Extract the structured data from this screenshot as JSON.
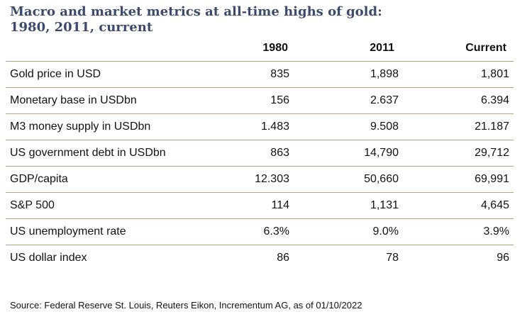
{
  "title_line1": "Macro and market metrics at all-time highs of gold:",
  "title_line2": "1980, 2011, current",
  "header": {
    "label": "",
    "col1980": "1980",
    "col2011": "2011",
    "colCurrent": "Current"
  },
  "rows": [
    {
      "label": "Gold price in USD",
      "v1980": "835",
      "v2011": "1,898",
      "current": "1,801"
    },
    {
      "label": "Monetary base in USDbn",
      "v1980": "156",
      "v2011": "2.637",
      "current": "6.394"
    },
    {
      "label": "M3 money supply in USDbn",
      "v1980": "1.483",
      "v2011": "9.508",
      "current": "21.187"
    },
    {
      "label": "US government debt in USDbn",
      "v1980": "863",
      "v2011": "14,790",
      "current": "29,712"
    },
    {
      "label": "GDP/capita",
      "v1980": "12.303",
      "v2011": "50,660",
      "current": "69,991"
    },
    {
      "label": "S&P 500",
      "v1980": "114",
      "v2011": "1,131",
      "current": "4,645"
    },
    {
      "label": "US unemployment rate",
      "v1980": "6.3%",
      "v2011": "9.0%",
      "current": "3.9%"
    },
    {
      "label": "US dollar index",
      "v1980": "86",
      "v2011": "78",
      "current": "96"
    }
  ],
  "source": "Source: Federal Reserve St. Louis, Reuters Eikon, Incrementum AG, as of 01/10/2022",
  "colors": {
    "title": "#3d4a6b",
    "rule": "#b8a778"
  }
}
